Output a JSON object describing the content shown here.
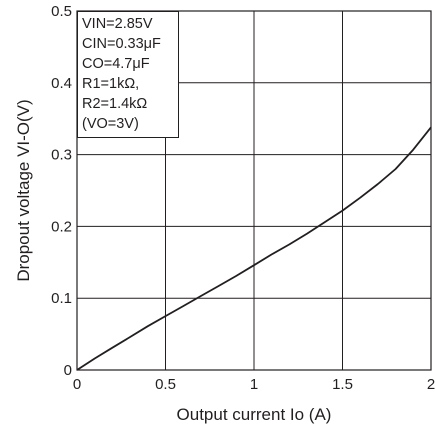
{
  "chart_data": {
    "type": "line",
    "xlabel": "Output current Io (A)",
    "ylabel": "Dropout voltage VI-O(V)",
    "xlim": [
      0,
      2
    ],
    "ylim": [
      0,
      0.5
    ],
    "x_ticks": [
      {
        "value": 0,
        "label": "0"
      },
      {
        "value": 0.5,
        "label": "0.5"
      },
      {
        "value": 1,
        "label": "1"
      },
      {
        "value": 1.5,
        "label": "1.5"
      },
      {
        "value": 2,
        "label": "2"
      }
    ],
    "y_ticks": [
      {
        "value": 0,
        "label": "0"
      },
      {
        "value": 0.1,
        "label": "0.1"
      },
      {
        "value": 0.2,
        "label": "0.2"
      },
      {
        "value": 0.3,
        "label": "0.3"
      },
      {
        "value": 0.4,
        "label": "0.4"
      },
      {
        "value": 0.5,
        "label": "0.5"
      }
    ],
    "grid": true,
    "conditions": [
      "VIN=2.85V",
      "CIN=0.33μF",
      "CO=4.7μF",
      "R1=1kΩ,",
      "R2=1.4kΩ",
      "(VO=3V)"
    ],
    "conditions_placement": "top-left",
    "series": [
      {
        "color": "#231f20",
        "x": [
          0,
          0.1,
          0.2,
          0.3,
          0.4,
          0.5,
          0.6,
          0.7,
          0.8,
          0.9,
          1.0,
          1.1,
          1.2,
          1.3,
          1.4,
          1.5,
          1.6,
          1.7,
          1.8,
          1.9,
          2.0
        ],
        "y": [
          0,
          0.016,
          0.031,
          0.046,
          0.061,
          0.075,
          0.089,
          0.103,
          0.117,
          0.131,
          0.146,
          0.161,
          0.175,
          0.19,
          0.206,
          0.222,
          0.24,
          0.259,
          0.28,
          0.307,
          0.338
        ]
      }
    ]
  }
}
